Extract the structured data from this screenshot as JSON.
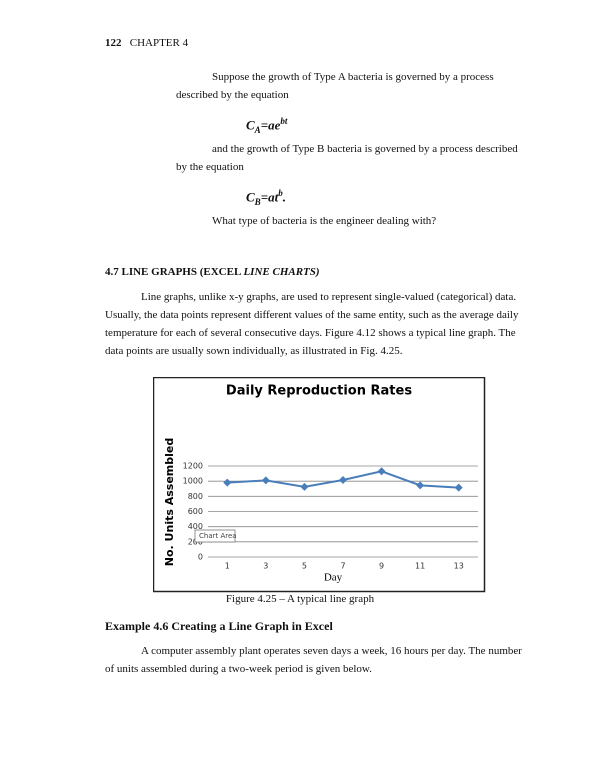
{
  "header": {
    "page_number": "122",
    "chapter": "CHAPTER 4"
  },
  "intro": {
    "paragraph_a": "Suppose the growth of Type A bacteria is governed by a process described by the equation",
    "equation_a": {
      "base": "C",
      "subscript": "A",
      "rhs": "=ae",
      "superscript": "bt"
    },
    "paragraph_b": "and the growth of Type B bacteria is governed by a process described by the equation",
    "equation_b": {
      "base": "C",
      "subscript": "B",
      "rhs": "=at",
      "superscript": "b",
      "end": "."
    },
    "question": "What type of bacteria is the engineer dealing with?"
  },
  "section": {
    "heading": "4.7 LINE GRAPHS (EXCEL ",
    "heading_italic": "LINE CHARTS)",
    "paragraph": "Line graphs, unlike x-y graphs, are used to represent single-valued (categorical) data. Usually, the data points represent different values of the same entity, such as the average daily temperature for each of several consecutive days. Figure 4.12 shows a typical line graph. The data points are usually sown individually, as illustrated in Fig. 4.25."
  },
  "chart_data": {
    "type": "line",
    "title": "Daily Reproduction Rates",
    "x_label": "Day",
    "y_label": "No. Units Assembled",
    "categories": [
      "1",
      "3",
      "5",
      "7",
      "9",
      "11",
      "13"
    ],
    "values": [
      980,
      1010,
      925,
      1015,
      1130,
      945,
      915
    ],
    "color": "#4a7ebb",
    "ylim": [
      0,
      1200
    ],
    "yticks": [
      0,
      200,
      400,
      600,
      800,
      1000,
      1200
    ],
    "grid": true,
    "tooltip": "Chart Area"
  },
  "caption": "Figure 4.25 – A typical line graph",
  "example": {
    "heading": "Example 4.6 Creating a Line Graph in Excel",
    "paragraph": "A computer assembly plant operates seven days a week, 16 hours per day. The number of units assembled during a two-week period is given below."
  }
}
